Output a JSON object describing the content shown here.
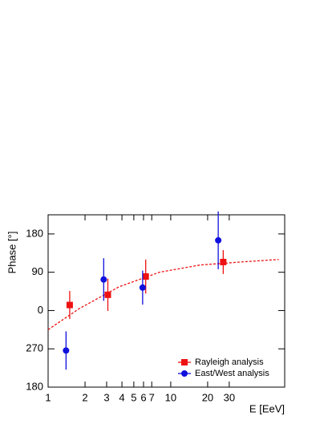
{
  "chart_data": {
    "type": "scatter",
    "xlabel": "E [EeV]",
    "ylabel": "Phase [°]",
    "xscale": "log",
    "xlim": [
      1,
      85
    ],
    "xticks": [
      1,
      2,
      3,
      4,
      5,
      6,
      7,
      10,
      20,
      30
    ],
    "ylim": [
      -180,
      225
    ],
    "yticks": [
      {
        "value": -180,
        "label": "180"
      },
      {
        "value": -90,
        "label": "270"
      },
      0,
      90,
      180
    ],
    "legend": "lower right",
    "series": [
      {
        "name": "Rayleigh analysis",
        "color": "#ee1111",
        "marker": "square",
        "x": [
          1.5,
          3.07,
          6.25,
          26.8
        ],
        "values": [
          13,
          37,
          80,
          114
        ],
        "errors": [
          33,
          38,
          40,
          28
        ]
      },
      {
        "name": "East/West analysis",
        "color": "#1111dd",
        "marker": "circle",
        "x": [
          1.4,
          2.84,
          5.9,
          24.4
        ],
        "values": [
          -94,
          73,
          54,
          165
        ],
        "errors": [
          45,
          50,
          40,
          68
        ]
      }
    ],
    "fit": {
      "color": "#ee1111",
      "x": [
        1,
        1.78,
        3.8,
        8.1,
        17.3,
        37,
        76
      ],
      "values": [
        -45,
        4,
        56,
        90,
        107,
        114,
        120
      ]
    }
  }
}
